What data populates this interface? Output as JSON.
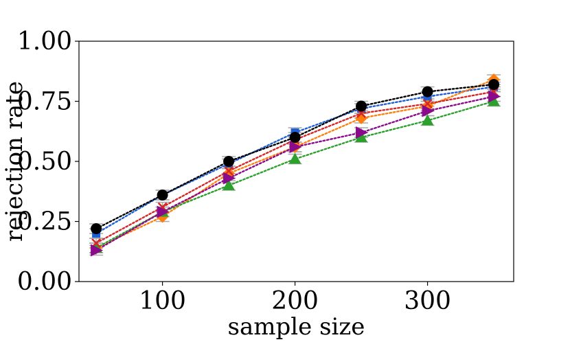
{
  "chart_data": {
    "type": "line",
    "title": "",
    "xlabel": "sample size",
    "ylabel": "rejection rate",
    "xlim": [
      37,
      365
    ],
    "ylim": [
      0,
      1
    ],
    "xticks": [
      100,
      200,
      300
    ],
    "xtick_labels": [
      "100",
      "200",
      "300"
    ],
    "yticks": [
      0,
      0.25,
      0.5,
      0.75,
      1.0
    ],
    "ytick_labels": [
      "0.00",
      "0.25",
      "0.50",
      "0.75",
      "1.00"
    ],
    "grid": false,
    "x": [
      50,
      100,
      150,
      200,
      250,
      300,
      350
    ],
    "error_bar_halfwidth": 0.02,
    "series": [
      {
        "name": "blue",
        "color": "#1f5fd6",
        "marker": "square",
        "values": [
          0.2,
          0.36,
          0.49,
          0.62,
          0.72,
          0.77,
          0.81
        ]
      },
      {
        "name": "orange",
        "color": "#ff7f0e",
        "marker": "diamond",
        "values": [
          0.14,
          0.27,
          0.45,
          0.56,
          0.68,
          0.73,
          0.84
        ]
      },
      {
        "name": "green",
        "color": "#2ca02c",
        "marker": "triangle-up",
        "values": [
          0.14,
          0.29,
          0.4,
          0.51,
          0.6,
          0.67,
          0.75
        ]
      },
      {
        "name": "red",
        "color": "#d62728",
        "marker": "x",
        "values": [
          0.16,
          0.31,
          0.46,
          0.59,
          0.7,
          0.74,
          0.79
        ]
      },
      {
        "name": "purple",
        "color": "#8b0a8b",
        "marker": "triangle-right",
        "values": [
          0.13,
          0.29,
          0.43,
          0.56,
          0.62,
          0.71,
          0.77
        ]
      },
      {
        "name": "black",
        "color": "#000000",
        "marker": "circle",
        "values": [
          0.22,
          0.36,
          0.5,
          0.6,
          0.73,
          0.79,
          0.82
        ]
      }
    ]
  }
}
